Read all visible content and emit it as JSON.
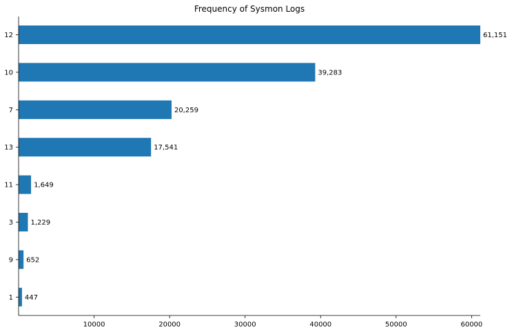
{
  "chart_data": {
    "type": "bar",
    "orientation": "horizontal",
    "title": "Frequency of Sysmon Logs",
    "xlabel": "",
    "ylabel": "",
    "categories": [
      "12",
      "10",
      "7",
      "13",
      "11",
      "3",
      "9",
      "1"
    ],
    "values": [
      61151,
      39283,
      20259,
      17541,
      1649,
      1229,
      652,
      447
    ],
    "data_labels": [
      "61,151",
      "39,283",
      "20,259",
      "17,541",
      "1,649",
      "1,229",
      "652",
      "447"
    ],
    "x_ticks": [
      10000,
      20000,
      30000,
      40000,
      50000,
      60000
    ],
    "x_tick_labels": [
      "10000",
      "20000",
      "30000",
      "40000",
      "50000",
      "60000"
    ],
    "xlim": [
      0,
      61151
    ],
    "bar_color": "#1f77b4",
    "grid": false,
    "legend": "none"
  }
}
